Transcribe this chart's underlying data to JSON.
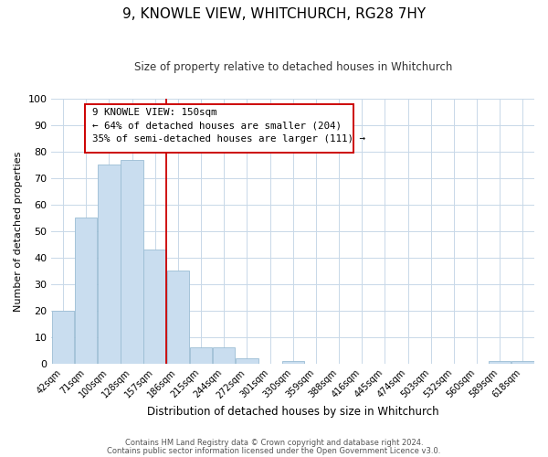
{
  "title": "9, KNOWLE VIEW, WHITCHURCH, RG28 7HY",
  "subtitle": "Size of property relative to detached houses in Whitchurch",
  "xlabel": "Distribution of detached houses by size in Whitchurch",
  "ylabel": "Number of detached properties",
  "bar_labels": [
    "42sqm",
    "71sqm",
    "100sqm",
    "128sqm",
    "157sqm",
    "186sqm",
    "215sqm",
    "244sqm",
    "272sqm",
    "301sqm",
    "330sqm",
    "359sqm",
    "388sqm",
    "416sqm",
    "445sqm",
    "474sqm",
    "503sqm",
    "532sqm",
    "560sqm",
    "589sqm",
    "618sqm"
  ],
  "bar_values": [
    20,
    55,
    75,
    77,
    43,
    35,
    6,
    6,
    2,
    0,
    1,
    0,
    0,
    0,
    0,
    0,
    0,
    0,
    0,
    1,
    1
  ],
  "bar_color": "#c9ddef",
  "bar_edgecolor": "#9bbdd4",
  "ylim": [
    0,
    100
  ],
  "yticks": [
    0,
    10,
    20,
    30,
    40,
    50,
    60,
    70,
    80,
    90,
    100
  ],
  "ref_line_color": "#cc0000",
  "annotation_box_text": "9 KNOWLE VIEW: 150sqm\n← 64% of detached houses are smaller (204)\n35% of semi-detached houses are larger (111) →",
  "footer1": "Contains HM Land Registry data © Crown copyright and database right 2024.",
  "footer2": "Contains public sector information licensed under the Open Government Licence v3.0.",
  "background_color": "#ffffff",
  "grid_color": "#c8d8e8"
}
